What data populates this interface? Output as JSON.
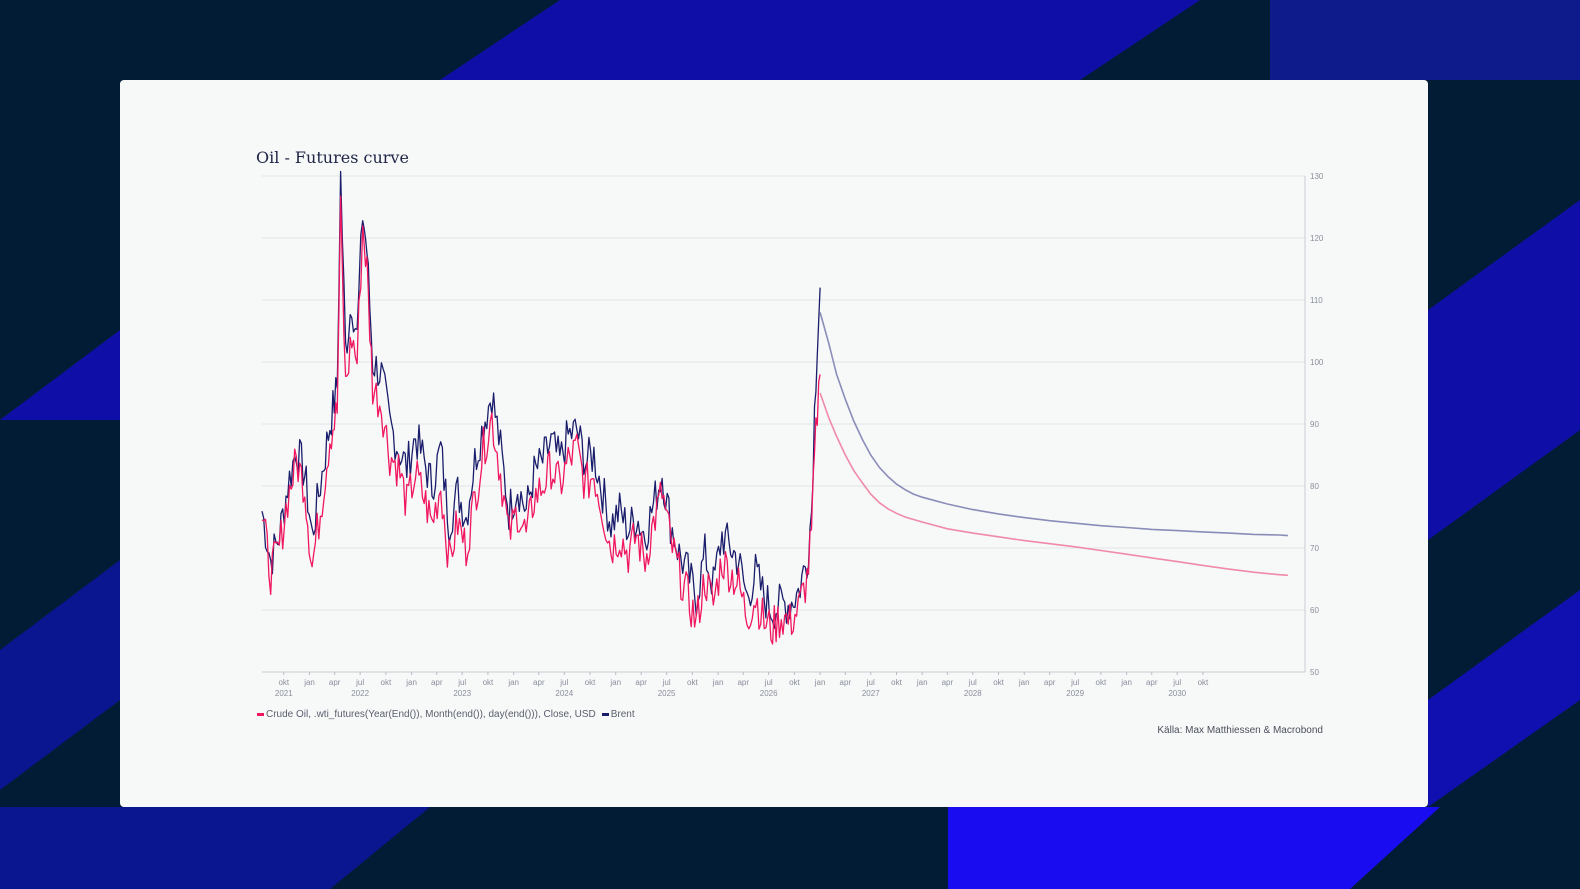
{
  "theme": {
    "background": "#031c36",
    "stripe_color": "#0f0fa8",
    "stripe_bright": "#1a0cf0",
    "card_color": "#f7f8f8"
  },
  "chart_data": {
    "type": "line",
    "title": "Oil - Futures curve",
    "source": "Källa: Max Matthiessen & Macrobond",
    "y_axis": {
      "position": "right",
      "ylim": [
        50,
        130
      ],
      "ticks": [
        50,
        60,
        70,
        80,
        90,
        100,
        110,
        120,
        130
      ]
    },
    "grid": true,
    "x_axis": {
      "range": [
        "2020-07-15",
        "2030-10-01"
      ],
      "month_labels": [
        {
          "date": "2020-10-01",
          "label": "okt",
          "year": "2021"
        },
        {
          "date": "2021-01-01",
          "label": "jan"
        },
        {
          "date": "2021-04-01",
          "label": "apr"
        },
        {
          "date": "2021-07-01",
          "label": "jul",
          "year": "2022"
        },
        {
          "date": "2021-10-01",
          "label": "okt"
        },
        {
          "date": "2022-01-01",
          "label": "jan"
        },
        {
          "date": "2022-04-01",
          "label": "apr"
        },
        {
          "date": "2022-07-01",
          "label": "jul",
          "year": "2023"
        },
        {
          "date": "2022-10-01",
          "label": "okt"
        },
        {
          "date": "2023-01-01",
          "label": "jan"
        },
        {
          "date": "2023-04-01",
          "label": "apr"
        },
        {
          "date": "2023-07-01",
          "label": "jul",
          "year": "2024"
        },
        {
          "date": "2023-10-01",
          "label": "okt"
        },
        {
          "date": "2024-01-01",
          "label": "jan"
        },
        {
          "date": "2024-04-01",
          "label": "apr"
        },
        {
          "date": "2024-07-01",
          "label": "jul",
          "year": "2025"
        },
        {
          "date": "2024-10-01",
          "label": "okt"
        },
        {
          "date": "2025-01-01",
          "label": "jan"
        },
        {
          "date": "2025-04-01",
          "label": "apr"
        },
        {
          "date": "2025-07-01",
          "label": "jul",
          "year": "2026"
        },
        {
          "date": "2025-10-01",
          "label": "okt"
        },
        {
          "date": "2026-01-01",
          "label": "jan"
        },
        {
          "date": "2026-04-01",
          "label": "apr"
        },
        {
          "date": "2026-07-01",
          "label": "jul",
          "year": "2027"
        },
        {
          "date": "2026-10-01",
          "label": "okt"
        },
        {
          "date": "2027-01-01",
          "label": "jan"
        },
        {
          "date": "2027-04-01",
          "label": "apr"
        },
        {
          "date": "2027-07-01",
          "label": "jul",
          "year": "2028"
        },
        {
          "date": "2027-10-01",
          "label": "okt"
        },
        {
          "date": "2028-01-01",
          "label": "jan"
        },
        {
          "date": "2028-04-01",
          "label": "apr"
        },
        {
          "date": "2028-07-01",
          "label": "jul",
          "year": "2029"
        },
        {
          "date": "2028-10-01",
          "label": "okt"
        },
        {
          "date": "2029-01-01",
          "label": "jan"
        },
        {
          "date": "2029-04-01",
          "label": "apr"
        },
        {
          "date": "2029-07-01",
          "label": "jul",
          "year": "2030"
        },
        {
          "date": "2029-10-01",
          "label": "okt"
        }
      ]
    },
    "series": [
      {
        "name": "Crude Oil, .wti_futures(Year(End()), Month(end()), day(end())), Close, USD",
        "color": "#f0165f",
        "forecast_color": "#f08aa8",
        "history": [
          [
            "2020-07-15",
            75
          ],
          [
            "2020-08-15",
            66
          ],
          [
            "2020-09-15",
            70
          ],
          [
            "2020-10-15",
            78
          ],
          [
            "2020-11-15",
            84
          ],
          [
            "2020-12-15",
            80
          ],
          [
            "2021-01-10",
            67
          ],
          [
            "2021-02-15",
            78
          ],
          [
            "2021-03-15",
            88
          ],
          [
            "2021-04-10",
            92
          ],
          [
            "2021-04-22",
            124
          ],
          [
            "2021-05-10",
            96
          ],
          [
            "2021-06-01",
            104
          ],
          [
            "2021-06-20",
            100
          ],
          [
            "2021-07-10",
            122
          ],
          [
            "2021-07-25",
            115
          ],
          [
            "2021-08-15",
            96
          ],
          [
            "2021-09-15",
            93
          ],
          [
            "2021-10-15",
            85
          ],
          [
            "2021-11-15",
            83
          ],
          [
            "2021-12-15",
            77
          ],
          [
            "2022-01-15",
            82
          ],
          [
            "2022-02-15",
            78
          ],
          [
            "2022-03-15",
            74
          ],
          [
            "2022-04-15",
            80
          ],
          [
            "2022-05-15",
            68
          ],
          [
            "2022-06-15",
            74
          ],
          [
            "2022-07-15",
            70
          ],
          [
            "2022-08-15",
            78
          ],
          [
            "2022-09-15",
            86
          ],
          [
            "2022-10-15",
            91
          ],
          [
            "2022-11-15",
            82
          ],
          [
            "2022-12-15",
            72
          ],
          [
            "2023-01-15",
            76
          ],
          [
            "2023-02-15",
            72
          ],
          [
            "2023-03-15",
            78
          ],
          [
            "2023-04-15",
            80
          ],
          [
            "2023-05-15",
            83
          ],
          [
            "2023-06-15",
            80
          ],
          [
            "2023-07-15",
            84
          ],
          [
            "2023-08-15",
            86
          ],
          [
            "2023-09-15",
            80
          ],
          [
            "2023-10-15",
            82
          ],
          [
            "2023-11-15",
            76
          ],
          [
            "2023-12-15",
            70
          ],
          [
            "2024-01-15",
            72
          ],
          [
            "2024-02-15",
            69
          ],
          [
            "2024-03-15",
            72
          ],
          [
            "2024-04-15",
            68
          ],
          [
            "2024-05-15",
            74
          ],
          [
            "2024-06-15",
            79
          ],
          [
            "2024-07-15",
            71
          ],
          [
            "2024-08-15",
            66
          ],
          [
            "2024-09-15",
            62
          ],
          [
            "2024-10-15",
            58
          ],
          [
            "2024-11-15",
            65
          ],
          [
            "2024-12-15",
            61
          ],
          [
            "2025-01-15",
            68
          ],
          [
            "2025-02-15",
            66
          ],
          [
            "2025-03-15",
            64
          ],
          [
            "2025-04-15",
            59
          ],
          [
            "2025-05-15",
            62
          ],
          [
            "2025-06-15",
            58
          ],
          [
            "2025-07-15",
            57
          ],
          [
            "2025-08-15",
            59
          ],
          [
            "2025-09-15",
            58
          ],
          [
            "2025-10-15",
            60
          ],
          [
            "2025-11-15",
            65
          ],
          [
            "2025-12-01",
            72
          ],
          [
            "2025-12-12",
            84
          ],
          [
            "2025-12-22",
            92
          ],
          [
            "2026-01-01",
            98
          ]
        ],
        "forecast": [
          [
            "2026-01-01",
            95
          ],
          [
            "2026-02-01",
            91
          ],
          [
            "2026-03-01",
            88
          ],
          [
            "2026-04-01",
            85
          ],
          [
            "2026-05-01",
            82.5
          ],
          [
            "2026-06-01",
            80.5
          ],
          [
            "2026-07-01",
            78.7
          ],
          [
            "2026-08-01",
            77.3
          ],
          [
            "2026-09-01",
            76.3
          ],
          [
            "2026-10-01",
            75.6
          ],
          [
            "2026-11-01",
            75.0
          ],
          [
            "2026-12-01",
            74.6
          ],
          [
            "2027-01-01",
            74.2
          ],
          [
            "2027-04-01",
            73.1
          ],
          [
            "2027-07-01",
            72.4
          ],
          [
            "2027-10-01",
            71.8
          ],
          [
            "2028-01-01",
            71.2
          ],
          [
            "2028-04-01",
            70.7
          ],
          [
            "2028-07-01",
            70.2
          ],
          [
            "2028-10-01",
            69.6
          ],
          [
            "2029-01-01",
            69.0
          ],
          [
            "2029-04-01",
            68.4
          ],
          [
            "2029-07-01",
            67.8
          ],
          [
            "2029-10-01",
            67.2
          ],
          [
            "2030-01-01",
            66.6
          ],
          [
            "2030-04-01",
            66.1
          ],
          [
            "2030-07-01",
            65.7
          ],
          [
            "2030-08-01",
            65.6
          ]
        ]
      },
      {
        "name": "Brent",
        "color": "#1a1d6b",
        "forecast_color": "#8a8db8",
        "history": [
          [
            "2020-07-15",
            76
          ],
          [
            "2020-08-15",
            68
          ],
          [
            "2020-09-15",
            72
          ],
          [
            "2020-10-15",
            80
          ],
          [
            "2020-11-15",
            86
          ],
          [
            "2020-12-15",
            82
          ],
          [
            "2021-01-10",
            72
          ],
          [
            "2021-02-15",
            82
          ],
          [
            "2021-03-15",
            90
          ],
          [
            "2021-04-10",
            96
          ],
          [
            "2021-04-22",
            130
          ],
          [
            "2021-05-10",
            102
          ],
          [
            "2021-06-01",
            110
          ],
          [
            "2021-06-20",
            104
          ],
          [
            "2021-07-10",
            124
          ],
          [
            "2021-07-25",
            118
          ],
          [
            "2021-08-15",
            100
          ],
          [
            "2021-09-15",
            98
          ],
          [
            "2021-10-15",
            90
          ],
          [
            "2021-11-15",
            86
          ],
          [
            "2021-12-15",
            83
          ],
          [
            "2022-01-15",
            88
          ],
          [
            "2022-02-15",
            84
          ],
          [
            "2022-03-15",
            80
          ],
          [
            "2022-04-15",
            86
          ],
          [
            "2022-05-15",
            74
          ],
          [
            "2022-06-15",
            79
          ],
          [
            "2022-07-15",
            75
          ],
          [
            "2022-08-15",
            84
          ],
          [
            "2022-09-15",
            90
          ],
          [
            "2022-10-15",
            95
          ],
          [
            "2022-11-15",
            86
          ],
          [
            "2022-12-15",
            76
          ],
          [
            "2023-01-15",
            80
          ],
          [
            "2023-02-15",
            76
          ],
          [
            "2023-03-15",
            82
          ],
          [
            "2023-04-15",
            84
          ],
          [
            "2023-05-15",
            87
          ],
          [
            "2023-06-15",
            84
          ],
          [
            "2023-07-15",
            88
          ],
          [
            "2023-08-15",
            89
          ],
          [
            "2023-09-15",
            84
          ],
          [
            "2023-10-15",
            85
          ],
          [
            "2023-11-15",
            79
          ],
          [
            "2023-12-15",
            74
          ],
          [
            "2024-01-15",
            76
          ],
          [
            "2024-02-15",
            73
          ],
          [
            "2024-03-15",
            75
          ],
          [
            "2024-04-15",
            72
          ],
          [
            "2024-05-15",
            77
          ],
          [
            "2024-06-15",
            82
          ],
          [
            "2024-07-15",
            74
          ],
          [
            "2024-08-15",
            69
          ],
          [
            "2024-09-15",
            66
          ],
          [
            "2024-10-15",
            62
          ],
          [
            "2024-11-15",
            69
          ],
          [
            "2024-12-15",
            64
          ],
          [
            "2025-01-15",
            72
          ],
          [
            "2025-02-15",
            70
          ],
          [
            "2025-03-15",
            68
          ],
          [
            "2025-04-15",
            62
          ],
          [
            "2025-05-15",
            66
          ],
          [
            "2025-06-15",
            62
          ],
          [
            "2025-07-15",
            60
          ],
          [
            "2025-08-15",
            61
          ],
          [
            "2025-09-15",
            61
          ],
          [
            "2025-10-15",
            63
          ],
          [
            "2025-11-15",
            68
          ],
          [
            "2025-12-01",
            76
          ],
          [
            "2025-12-12",
            92
          ],
          [
            "2025-12-22",
            104
          ],
          [
            "2026-01-01",
            112
          ]
        ],
        "forecast": [
          [
            "2026-01-01",
            108
          ],
          [
            "2026-02-01",
            103
          ],
          [
            "2026-03-01",
            98
          ],
          [
            "2026-04-01",
            94
          ],
          [
            "2026-05-01",
            90.5
          ],
          [
            "2026-06-01",
            87.5
          ],
          [
            "2026-07-01",
            85
          ],
          [
            "2026-08-01",
            83
          ],
          [
            "2026-09-01",
            81.5
          ],
          [
            "2026-10-01",
            80.3
          ],
          [
            "2026-11-01",
            79.4
          ],
          [
            "2026-12-01",
            78.7
          ],
          [
            "2027-01-01",
            78.2
          ],
          [
            "2027-04-01",
            77.1
          ],
          [
            "2027-07-01",
            76.2
          ],
          [
            "2027-10-01",
            75.5
          ],
          [
            "2028-01-01",
            74.9
          ],
          [
            "2028-04-01",
            74.4
          ],
          [
            "2028-07-01",
            74.0
          ],
          [
            "2028-10-01",
            73.6
          ],
          [
            "2029-01-01",
            73.3
          ],
          [
            "2029-04-01",
            73.0
          ],
          [
            "2029-07-01",
            72.8
          ],
          [
            "2029-10-01",
            72.6
          ],
          [
            "2030-01-01",
            72.4
          ],
          [
            "2030-04-01",
            72.2
          ],
          [
            "2030-07-01",
            72.1
          ],
          [
            "2030-08-01",
            72.0
          ]
        ]
      }
    ]
  }
}
